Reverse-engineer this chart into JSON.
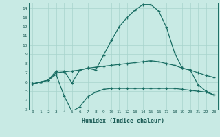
{
  "xlabel": "Humidex (Indice chaleur)",
  "bg_color": "#c8eae4",
  "line_color": "#1a6e64",
  "grid_color": "#a8d4cc",
  "x_values": [
    0,
    1,
    2,
    3,
    4,
    5,
    6,
    7,
    8,
    9,
    10,
    11,
    12,
    13,
    14,
    15,
    16,
    17,
    18,
    19,
    20,
    21,
    22,
    23
  ],
  "line1": [
    5.8,
    6.0,
    6.2,
    7.2,
    7.2,
    5.9,
    7.3,
    7.5,
    7.3,
    8.9,
    10.5,
    12.0,
    13.0,
    13.8,
    14.4,
    14.4,
    13.7,
    11.9,
    9.2,
    7.5,
    7.3,
    5.7,
    5.0,
    4.6
  ],
  "line2": [
    5.8,
    6.0,
    6.2,
    7.0,
    7.1,
    7.2,
    7.3,
    7.5,
    7.6,
    7.7,
    7.8,
    7.9,
    8.0,
    8.1,
    8.2,
    8.3,
    8.2,
    8.0,
    7.8,
    7.5,
    7.3,
    7.0,
    6.7,
    6.5
  ],
  "line3": [
    5.8,
    6.0,
    6.2,
    6.8,
    4.5,
    2.8,
    3.3,
    4.4,
    4.9,
    5.2,
    5.3,
    5.3,
    5.3,
    5.3,
    5.3,
    5.3,
    5.3,
    5.3,
    5.3,
    5.2,
    5.1,
    5.0,
    4.9,
    4.6
  ],
  "ylim": [
    3,
    14.6
  ],
  "xlim": [
    -0.5,
    23.5
  ],
  "yticks": [
    3,
    4,
    5,
    6,
    7,
    8,
    9,
    10,
    11,
    12,
    13,
    14
  ],
  "xticks": [
    0,
    1,
    2,
    3,
    4,
    5,
    6,
    7,
    8,
    9,
    10,
    11,
    12,
    13,
    14,
    15,
    16,
    17,
    18,
    19,
    20,
    21,
    22,
    23
  ]
}
